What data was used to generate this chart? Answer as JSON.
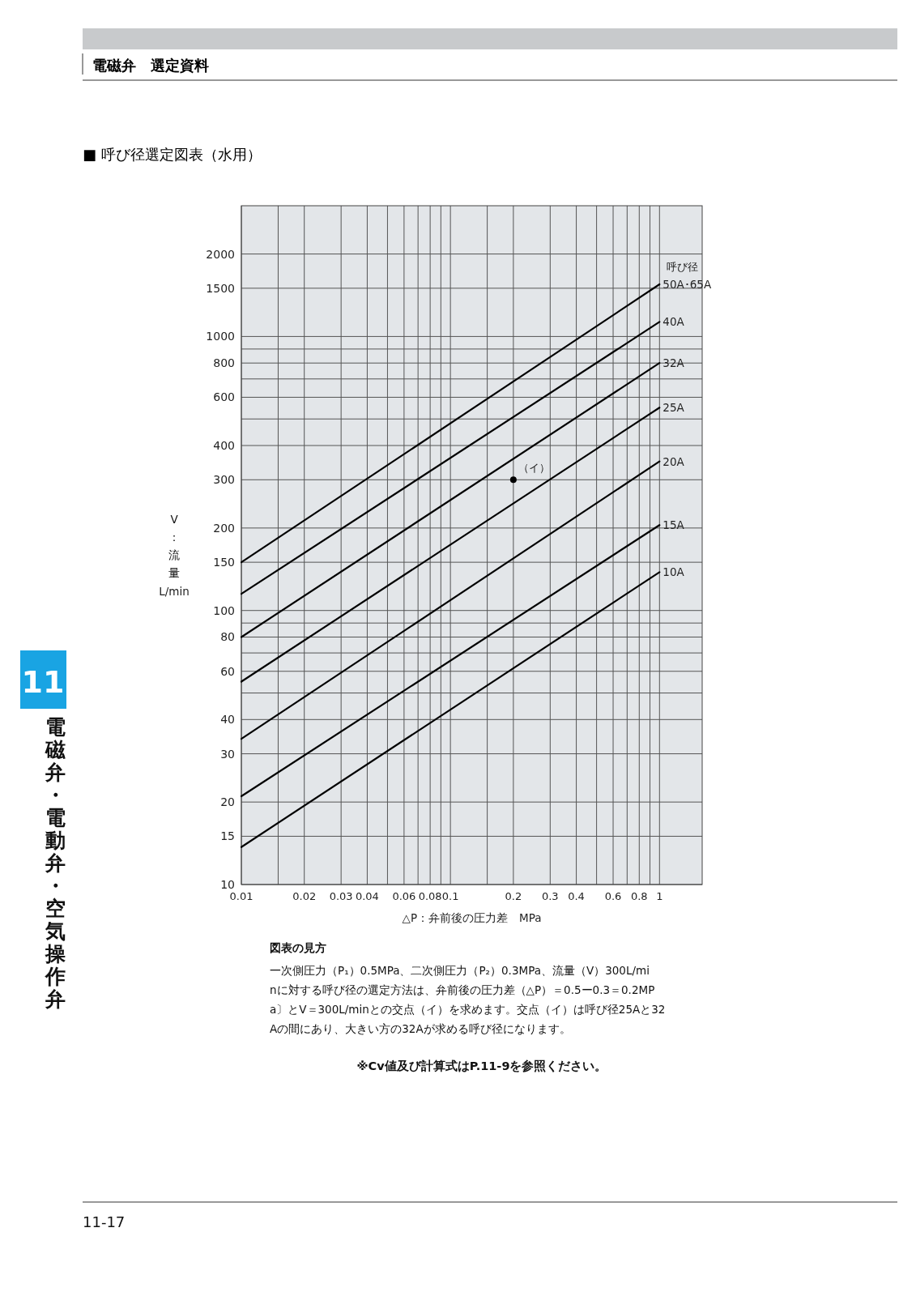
{
  "chart_data": {
    "type": "line",
    "title": "■ 呼び径選定図表（水用）",
    "subtitle": "電磁弁　選定資料",
    "xlabel": "△P：弁前後の圧力差　MPa",
    "ylabel": "V：流量 L/min",
    "log": "xy",
    "grid": true,
    "legend": false,
    "marker": "none",
    "line_style": "solid",
    "xlim": [
      0.01,
      1.6
    ],
    "ylim": [
      10,
      3000
    ],
    "xticks": [
      0.01,
      {
        "value": 0.015,
        "label": null
      },
      0.02,
      0.03,
      0.04,
      {
        "value": 0.05,
        "label": null
      },
      0.06,
      {
        "value": 0.07,
        "label": null
      },
      0.08,
      {
        "value": 0.09,
        "label": null
      },
      0.1,
      {
        "value": 0.15,
        "label": null
      },
      0.2,
      0.3,
      0.4,
      {
        "value": 0.5,
        "label": null
      },
      0.6,
      {
        "value": 0.7,
        "label": null
      },
      0.8,
      {
        "value": 0.9,
        "label": null
      },
      1
    ],
    "yticks": [
      10,
      15,
      20,
      30,
      40,
      {
        "value": 50,
        "label": null
      },
      60,
      {
        "value": 70,
        "label": null
      },
      80,
      {
        "value": 90,
        "label": null
      },
      100,
      150,
      200,
      300,
      400,
      {
        "value": 500,
        "label": null
      },
      600,
      {
        "value": 700,
        "label": null
      },
      800,
      {
        "value": 900,
        "label": null
      },
      1000,
      1500,
      2000
    ],
    "series": [
      {
        "name": "50A･65A",
        "color": "#000000",
        "x": [
          0.01,
          1
        ],
        "values": [
          150,
          1550
        ]
      },
      {
        "name": "40A",
        "color": "#000000",
        "x": [
          0.01,
          1
        ],
        "values": [
          115,
          1130
        ]
      },
      {
        "name": "32A",
        "color": "#000000",
        "x": [
          0.01,
          1
        ],
        "values": [
          80,
          800
        ]
      },
      {
        "name": "25A",
        "color": "#000000",
        "x": [
          0.01,
          1
        ],
        "values": [
          55,
          550
        ]
      },
      {
        "name": "20A",
        "color": "#000000",
        "x": [
          0.01,
          1
        ],
        "values": [
          34,
          350
        ]
      },
      {
        "name": "15A",
        "color": "#000000",
        "x": [
          0.01,
          1
        ],
        "values": [
          21,
          205
        ]
      },
      {
        "name": "10A",
        "color": "#000000",
        "x": [
          0.01,
          1
        ],
        "values": [
          13.7,
          138
        ]
      },
      {
        "name": "（イ）",
        "type": "scatter",
        "marker": "circle",
        "color": "#000000",
        "x": [
          0.2
        ],
        "values": [
          300
        ]
      }
    ],
    "annotations": [
      "呼び径",
      "図表の見方",
      "一次側圧力（P₁）0.5MPa、二次側圧力（P₂）0.3MPa、流量（V）300L/minに対する呼び径の選定方法は、弁前後の圧力差（△P）＝0.5ー0.3＝0.2MPa〕とV＝300L/minとの交点（イ）を求めます。交点（イ）は呼び径25Aと32Aの間にあり、大きい方の32Aが求める呼び径になります。",
      "※Cv値及び計算式はP.11-9を参照ください。",
      "11",
      "電磁弁・電動弁・空気操作弁",
      "11-17"
    ]
  }
}
